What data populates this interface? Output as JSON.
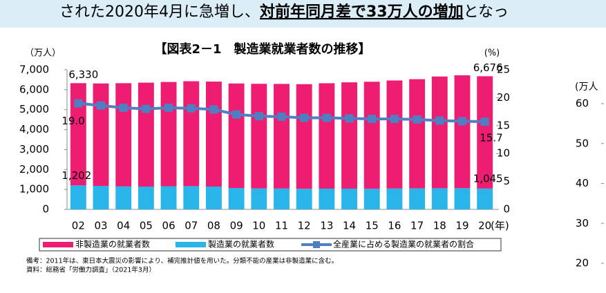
{
  "header": {
    "parts": [
      {
        "text": "された2020年4月に急増し、",
        "emphasis": false
      },
      {
        "text": "対前年同月差で33万人の増加",
        "emphasis": true
      },
      {
        "text": "となっ",
        "emphasis": false
      }
    ]
  },
  "chart_data": [
    {
      "type": "bar",
      "stacked": true,
      "title": "【図表2－1　製造業就業者数の推移】",
      "y_label": "（万人）",
      "y2_label": "(%)",
      "x_unit": "(年)",
      "categories": [
        "02",
        "03",
        "04",
        "05",
        "06",
        "07",
        "08",
        "09",
        "10",
        "11",
        "12",
        "13",
        "14",
        "15",
        "16",
        "17",
        "18",
        "19",
        "20"
      ],
      "series": [
        {
          "name": "製造業の就業者数",
          "color": "#29b5ea",
          "values": [
            1202,
            1178,
            1150,
            1142,
            1161,
            1165,
            1144,
            1073,
            1049,
            1046,
            1032,
            1039,
            1040,
            1035,
            1045,
            1052,
            1060,
            1063,
            1045
          ],
          "value_labels": [
            "1,202",
            null,
            null,
            null,
            null,
            null,
            null,
            null,
            null,
            null,
            null,
            null,
            null,
            null,
            null,
            null,
            null,
            null,
            "1,045"
          ]
        },
        {
          "name": "非製造業の就業者数",
          "color": "#ef1d72",
          "values": [
            5128,
            5138,
            5179,
            5214,
            5228,
            5262,
            5265,
            5241,
            5249,
            5247,
            5248,
            5287,
            5331,
            5366,
            5420,
            5478,
            5604,
            5661,
            5631
          ]
        },
        {
          "name": "全産業に占める製造業の就業者の割合",
          "color": "#4f7fc2",
          "axis": "y2",
          "kind": "line",
          "values": [
            19,
            18.6,
            18.2,
            18,
            18.2,
            18.1,
            17.9,
            17,
            16.7,
            16.6,
            16.4,
            16.4,
            16.3,
            16.2,
            16.2,
            16.1,
            15.9,
            15.8,
            15.7
          ],
          "value_labels": [
            "19.0",
            null,
            null,
            null,
            null,
            null,
            null,
            null,
            null,
            null,
            null,
            null,
            null,
            null,
            null,
            null,
            null,
            null,
            "15.7"
          ]
        }
      ],
      "total_labels": [
        {
          "value": 6330,
          "label": "6,330"
        },
        {
          "value": 6676,
          "label": "6,676"
        }
      ],
      "ylim": [
        0,
        7000
      ],
      "yticks": [
        0,
        {
          "value": 1000,
          "label": "1,000"
        },
        {
          "value": 2000,
          "label": "2,000"
        },
        {
          "value": 3000,
          "label": "3,000"
        },
        {
          "value": 4000,
          "label": "4,000"
        },
        {
          "value": 5000,
          "label": "5,000"
        },
        {
          "value": 6000,
          "label": "6,000"
        },
        {
          "value": 7000,
          "label": "7,000"
        }
      ],
      "y2lim": [
        0,
        25
      ],
      "y2ticks": [
        0,
        5,
        10,
        15,
        20,
        25
      ],
      "legend": "bottom",
      "notes": [
        "備考：2011年は、東日本大震災の影響により、補完推計値を用いた。分類不能の産業は非製造業に含む。",
        "資料：総務省「労働力調査」（2021年3月）"
      ]
    },
    {
      "type": "line",
      "y_label": "(万人",
      "ylim": [
        20,
        60
      ],
      "yticks": [
        60,
        50,
        40,
        30,
        20
      ]
    }
  ]
}
